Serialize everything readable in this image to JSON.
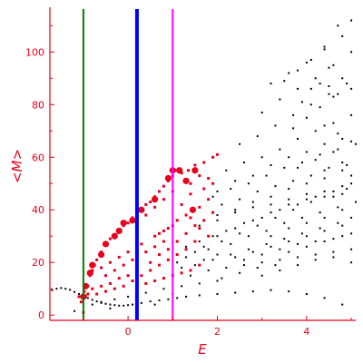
{
  "chart_data": {
    "type": "scatter",
    "title": "",
    "xlabel": "E",
    "ylabel": "<M>",
    "xlim": [
      -1.75,
      5.1
    ],
    "ylim": [
      -2,
      117
    ],
    "grid": false,
    "legend": "none",
    "x_ticks": [
      0,
      2,
      4
    ],
    "y_ticks": [
      0,
      20,
      40,
      60,
      80,
      100
    ],
    "axis_color": "#e8001c",
    "vertical_lines": [
      {
        "x": -1.0,
        "color": "#008000",
        "width": 2
      },
      {
        "x": 0.2,
        "color": "#0000ff",
        "width": 4
      },
      {
        "x": 1.0,
        "color": "#ff00ff",
        "width": 2
      }
    ],
    "black_points": {
      "color": "#000000",
      "points": [
        [
          -1.7,
          9.5
        ],
        [
          -1.6,
          10
        ],
        [
          -1.5,
          10.3
        ],
        [
          -1.4,
          10
        ],
        [
          -1.3,
          9.6
        ],
        [
          -1.2,
          8.8
        ],
        [
          -1.1,
          8
        ],
        [
          -1.0,
          7.2
        ],
        [
          -0.9,
          6.5
        ],
        [
          -0.8,
          5.8
        ],
        [
          -0.7,
          5.2
        ],
        [
          -0.6,
          4.6
        ],
        [
          -0.5,
          4.3
        ],
        [
          -0.4,
          4
        ],
        [
          -0.3,
          3.8
        ],
        [
          -0.2,
          3.6
        ],
        [
          -0.1,
          3.6
        ],
        [
          0.0,
          3.8
        ],
        [
          0.1,
          4
        ],
        [
          0.3,
          4.6
        ],
        [
          0.5,
          5.2
        ],
        [
          0.7,
          5.6
        ],
        [
          0.9,
          6
        ],
        [
          1.1,
          6.5
        ],
        [
          1.3,
          7
        ],
        [
          1.6,
          7.5
        ],
        [
          2.0,
          8
        ],
        [
          2.4,
          8.5
        ],
        [
          2.8,
          9
        ],
        [
          3.2,
          9.5
        ],
        [
          3.6,
          9
        ],
        [
          4.0,
          8
        ],
        [
          4.4,
          6.5
        ],
        [
          4.8,
          4
        ],
        [
          -1.2,
          1.5
        ],
        [
          -1.0,
          1.2
        ],
        [
          -0.4,
          2.5
        ],
        [
          0.2,
          3
        ],
        [
          0.6,
          4
        ],
        [
          1.0,
          8
        ],
        [
          -0.8,
          4
        ],
        [
          -0.6,
          5
        ],
        [
          -0.3,
          6
        ],
        [
          0.0,
          7
        ],
        [
          0.4,
          8.5
        ],
        [
          0.8,
          10
        ],
        [
          1.2,
          11
        ],
        [
          1.6,
          12
        ],
        [
          2.0,
          13
        ],
        [
          1.4,
          15
        ],
        [
          1.8,
          17
        ],
        [
          2.2,
          18
        ],
        [
          2.6,
          19
        ],
        [
          3.0,
          20
        ],
        [
          3.4,
          21
        ],
        [
          3.8,
          22
        ],
        [
          4.2,
          23
        ],
        [
          4.6,
          24
        ],
        [
          5.0,
          25
        ],
        [
          2.4,
          22
        ],
        [
          2.8,
          24
        ],
        [
          3.2,
          26
        ],
        [
          3.6,
          28
        ],
        [
          4.0,
          30
        ],
        [
          4.4,
          32
        ],
        [
          4.8,
          34
        ],
        [
          2.1,
          14
        ],
        [
          2.5,
          16
        ],
        [
          2.9,
          18
        ],
        [
          3.3,
          19
        ],
        [
          1.8,
          25
        ],
        [
          2.3,
          27
        ],
        [
          2.7,
          30
        ],
        [
          3.1,
          32
        ],
        [
          3.5,
          35
        ],
        [
          3.9,
          37
        ],
        [
          4.3,
          39
        ],
        [
          4.7,
          41
        ],
        [
          5.1,
          43
        ],
        [
          1.9,
          30
        ],
        [
          2.2,
          32
        ],
        [
          2.6,
          35
        ],
        [
          3.0,
          37
        ],
        [
          3.4,
          40
        ],
        [
          3.8,
          42
        ],
        [
          4.2,
          45
        ],
        [
          4.6,
          47
        ],
        [
          5.0,
          50
        ],
        [
          2.0,
          38
        ],
        [
          2.4,
          40
        ],
        [
          2.8,
          43
        ],
        [
          3.2,
          45
        ],
        [
          3.6,
          48
        ],
        [
          4.0,
          50
        ],
        [
          4.4,
          52
        ],
        [
          4.8,
          55
        ],
        [
          1.9,
          45
        ],
        [
          2.3,
          48
        ],
        [
          2.7,
          50
        ],
        [
          3.1,
          53
        ],
        [
          3.5,
          56
        ],
        [
          3.9,
          58
        ],
        [
          4.3,
          61
        ],
        [
          4.7,
          63
        ],
        [
          5.1,
          65
        ],
        [
          2.2,
          55
        ],
        [
          2.6,
          58
        ],
        [
          3.0,
          60
        ],
        [
          3.4,
          63
        ],
        [
          3.8,
          67
        ],
        [
          4.2,
          70
        ],
        [
          4.6,
          73
        ],
        [
          5.0,
          76
        ],
        [
          2.5,
          65
        ],
        [
          2.9,
          68
        ],
        [
          3.3,
          72
        ],
        [
          3.7,
          76
        ],
        [
          4.1,
          80
        ],
        [
          4.5,
          84
        ],
        [
          4.9,
          88
        ],
        [
          3.0,
          77
        ],
        [
          3.4,
          82
        ],
        [
          3.8,
          86
        ],
        [
          4.2,
          90
        ],
        [
          4.6,
          95
        ],
        [
          5.0,
          100
        ],
        [
          3.2,
          88
        ],
        [
          3.6,
          92
        ],
        [
          4.0,
          96
        ],
        [
          4.4,
          101
        ],
        [
          4.8,
          106
        ],
        [
          5.0,
          112
        ],
        [
          4.7,
          110
        ],
        [
          4.4,
          102
        ],
        [
          4.1,
          97
        ],
        [
          3.8,
          93
        ],
        [
          3.5,
          89
        ],
        [
          4.5,
          94
        ],
        [
          4.8,
          90
        ],
        [
          5.0,
          86
        ],
        [
          4.6,
          83
        ],
        [
          4.3,
          79
        ],
        [
          4.0,
          75
        ],
        [
          3.7,
          71
        ],
        [
          3.9,
          81
        ],
        [
          4.1,
          86
        ],
        [
          4.3,
          88
        ],
        [
          4.5,
          87
        ],
        [
          4.7,
          84
        ],
        [
          4.4,
          72
        ],
        [
          4.7,
          69
        ],
        [
          5.0,
          66
        ],
        [
          4.6,
          62
        ],
        [
          4.2,
          59
        ],
        [
          3.8,
          56
        ],
        [
          4.4,
          55
        ],
        [
          4.8,
          58
        ],
        [
          5.0,
          53
        ],
        [
          4.9,
          48
        ],
        [
          4.6,
          45
        ],
        [
          4.1,
          43
        ],
        [
          3.7,
          40
        ],
        [
          3.3,
          37
        ],
        [
          2.9,
          34
        ],
        [
          2.5,
          31
        ],
        [
          2.1,
          28
        ],
        [
          1.7,
          26
        ],
        [
          1.5,
          24
        ],
        [
          1.3,
          22
        ],
        [
          1.1,
          20
        ],
        [
          1.2,
          18
        ],
        [
          1.5,
          19
        ],
        [
          1.9,
          21
        ],
        [
          2.3,
          23
        ],
        [
          2.7,
          25
        ],
        [
          3.1,
          27
        ],
        [
          3.5,
          29
        ],
        [
          3.9,
          31
        ],
        [
          4.3,
          33
        ],
        [
          4.7,
          35
        ],
        [
          5.0,
          37
        ],
        [
          1.6,
          34
        ],
        [
          2.0,
          36
        ],
        [
          2.4,
          39
        ],
        [
          2.8,
          41
        ],
        [
          3.2,
          42
        ],
        [
          3.6,
          44
        ],
        [
          4.0,
          46
        ],
        [
          4.4,
          47
        ],
        [
          4.8,
          49
        ],
        [
          2.1,
          42
        ],
        [
          2.5,
          44
        ],
        [
          2.9,
          47
        ],
        [
          3.3,
          49
        ],
        [
          3.7,
          51
        ],
        [
          4.1,
          53
        ],
        [
          4.5,
          56
        ],
        [
          4.9,
          57
        ],
        [
          3.0,
          15
        ],
        [
          3.4,
          17
        ],
        [
          3.8,
          19
        ],
        [
          4.2,
          21
        ],
        [
          4.6,
          22
        ],
        [
          5.0,
          20
        ],
        [
          3.6,
          24
        ],
        [
          4.0,
          26
        ],
        [
          4.4,
          28
        ],
        [
          4.8,
          30
        ],
        [
          3.2,
          30
        ],
        [
          3.6,
          33
        ],
        [
          4.0,
          35
        ],
        [
          4.4,
          37
        ],
        [
          4.8,
          40
        ],
        [
          2.0,
          47
        ],
        [
          2.4,
          51
        ],
        [
          2.8,
          53
        ],
        [
          3.2,
          57
        ],
        [
          3.6,
          60
        ],
        [
          4.0,
          62
        ],
        [
          4.4,
          65
        ],
        [
          4.8,
          67
        ],
        [
          1.7,
          21
        ],
        [
          2.0,
          23
        ],
        [
          2.6,
          21
        ],
        [
          3.0,
          23
        ],
        [
          3.4,
          25
        ],
        [
          3.8,
          27
        ],
        [
          4.2,
          28
        ],
        [
          4.6,
          29
        ],
        [
          5.0,
          31
        ],
        [
          1.3,
          26
        ],
        [
          1.6,
          28
        ],
        [
          2.0,
          30
        ],
        [
          2.4,
          33
        ],
        [
          2.8,
          36
        ],
        [
          3.2,
          39
        ],
        [
          3.6,
          42
        ],
        [
          4.0,
          44
        ],
        [
          4.4,
          45
        ],
        [
          4.8,
          46
        ]
      ]
    },
    "red_points": {
      "color": "#e8001c",
      "points": [
        [
          -1.0,
          1
        ],
        [
          -0.95,
          7
        ],
        [
          -0.9,
          11
        ],
        [
          -0.85,
          15
        ],
        [
          -0.8,
          17
        ],
        [
          -0.75,
          19
        ],
        [
          -0.7,
          21
        ],
        [
          -0.6,
          24
        ],
        [
          -0.5,
          27
        ],
        [
          -0.4,
          29
        ],
        [
          -0.3,
          30
        ],
        [
          -0.2,
          32
        ],
        [
          -0.1,
          34
        ],
        [
          0.0,
          35
        ],
        [
          0.1,
          37
        ],
        [
          0.2,
          38
        ],
        [
          0.3,
          40
        ],
        [
          0.4,
          42
        ],
        [
          0.5,
          43
        ],
        [
          0.6,
          45
        ],
        [
          0.7,
          47
        ],
        [
          0.8,
          49
        ],
        [
          0.9,
          51
        ],
        [
          1.0,
          53
        ],
        [
          1.05,
          55
        ],
        [
          1.2,
          54
        ],
        [
          1.35,
          55
        ],
        [
          1.5,
          57
        ],
        [
          1.7,
          58
        ],
        [
          1.9,
          60
        ],
        [
          2.0,
          61
        ],
        [
          1.4,
          50
        ],
        [
          1.2,
          42
        ],
        [
          1.4,
          37
        ],
        [
          1.6,
          33
        ],
        [
          1.8,
          30
        ],
        [
          1.5,
          28
        ],
        [
          1.3,
          25
        ],
        [
          1.1,
          23
        ],
        [
          0.9,
          21
        ],
        [
          0.7,
          19
        ],
        [
          0.5,
          17
        ],
        [
          0.3,
          15
        ],
        [
          0.1,
          13
        ],
        [
          -0.1,
          11
        ],
        [
          -0.3,
          10
        ],
        [
          -0.5,
          9
        ],
        [
          -0.7,
          8
        ],
        [
          -0.9,
          8
        ],
        [
          -1.1,
          7
        ],
        [
          0.2,
          22
        ],
        [
          0.4,
          24
        ],
        [
          0.6,
          26
        ],
        [
          0.8,
          28
        ],
        [
          0.5,
          20
        ],
        [
          0.7,
          23
        ],
        [
          0.9,
          25
        ],
        [
          1.1,
          28
        ],
        [
          1.3,
          31
        ],
        [
          1.5,
          34
        ],
        [
          1.7,
          36
        ],
        [
          1.9,
          39
        ],
        [
          1.6,
          41
        ],
        [
          1.8,
          44
        ],
        [
          1.4,
          46
        ],
        [
          1.7,
          48
        ],
        [
          1.9,
          50
        ],
        [
          1.1,
          36
        ],
        [
          1.3,
          38
        ],
        [
          0.9,
          33
        ],
        [
          0.7,
          31
        ],
        [
          -0.5,
          15
        ],
        [
          -0.3,
          17
        ],
        [
          -0.1,
          19
        ],
        [
          0.1,
          21
        ],
        [
          -0.6,
          18
        ],
        [
          -0.4,
          20
        ],
        [
          -0.2,
          22
        ],
        [
          0.0,
          24
        ],
        [
          0.3,
          27
        ],
        [
          0.6,
          30
        ],
        [
          0.8,
          32
        ],
        [
          1.0,
          34
        ],
        [
          0.4,
          12
        ],
        [
          0.6,
          13
        ],
        [
          0.8,
          14
        ],
        [
          1.0,
          15
        ],
        [
          1.2,
          16
        ],
        [
          1.4,
          17
        ],
        [
          1.6,
          19
        ],
        [
          -0.2,
          14
        ],
        [
          0.0,
          15
        ],
        [
          0.2,
          16
        ],
        [
          -0.4,
          12
        ],
        [
          -0.6,
          11
        ],
        [
          -0.8,
          10
        ],
        [
          1.8,
          52
        ],
        [
          1.6,
          53
        ],
        [
          1.3,
          51
        ],
        [
          1.0,
          47
        ],
        [
          0.8,
          44
        ],
        [
          0.6,
          41
        ],
        [
          0.4,
          38
        ],
        [
          0.2,
          35
        ],
        [
          -1.05,
          5
        ],
        [
          -0.98,
          9
        ]
      ]
    },
    "red_big_points": {
      "color": "#e8001c",
      "points": [
        [
          -1.0,
          7
        ],
        [
          -0.95,
          11
        ],
        [
          -0.85,
          16
        ],
        [
          -0.8,
          19
        ],
        [
          -0.6,
          23
        ],
        [
          -0.5,
          27
        ],
        [
          -0.3,
          30
        ],
        [
          -0.2,
          32
        ],
        [
          -0.1,
          35
        ],
        [
          0.1,
          36
        ],
        [
          0.3,
          40
        ],
        [
          0.6,
          44
        ],
        [
          0.9,
          52
        ],
        [
          1.0,
          55
        ],
        [
          1.15,
          55
        ],
        [
          1.3,
          51
        ],
        [
          1.5,
          55
        ],
        [
          1.45,
          40
        ]
      ]
    }
  }
}
